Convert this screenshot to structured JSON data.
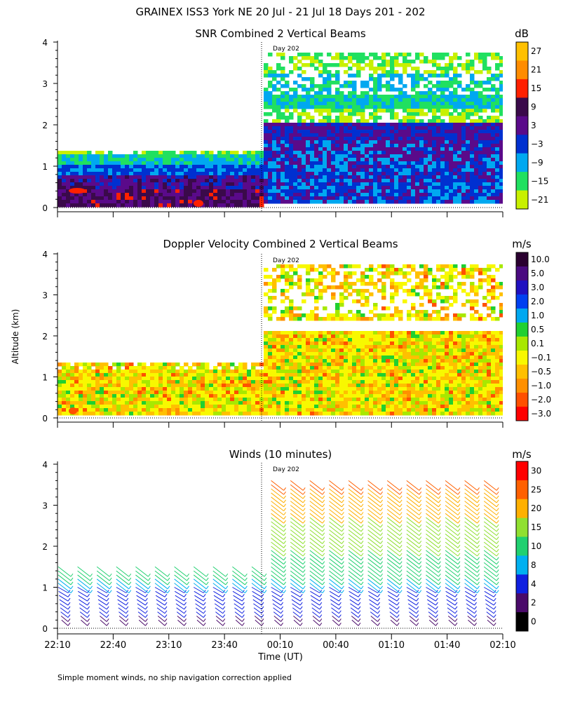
{
  "title": "GRAINEX ISS3 York NE  20 Jul - 21 Jul 18 Days 201 - 202",
  "ylabel": "Altitude (km)",
  "xlabel": "Time (UT)",
  "footnote": "Simple moment winds, no ship navigation correction applied",
  "day_marker": "Day 202",
  "x_ticks": [
    "22:10",
    "22:40",
    "23:10",
    "23:40",
    "00:10",
    "00:40",
    "01:10",
    "01:40",
    "02:10"
  ],
  "y_ticks": [
    "0",
    "1",
    "2",
    "3",
    "4"
  ],
  "panels": [
    {
      "title": "SNR Combined 2 Vertical Beams",
      "unit": "dB",
      "colorbar_labels": [
        "27",
        "21",
        "15",
        "9",
        "3",
        "−3",
        "−9",
        "−15",
        "−21"
      ],
      "colorbar_colors": [
        "#ffc000",
        "#ff8c00",
        "#ff2000",
        "#3a0a4a",
        "#5a0a8a",
        "#0030d0",
        "#00a8f0",
        "#20e060",
        "#c8f000"
      ]
    },
    {
      "title": "Doppler Velocity Combined 2 Vertical Beams",
      "unit": "m/s",
      "colorbar_labels": [
        "10.0",
        "5.0",
        "3.0",
        "2.0",
        "1.0",
        "0.5",
        "0.1",
        "−0.1",
        "−0.5",
        "−1.0",
        "−2.0",
        "−3.0"
      ],
      "colorbar_colors": [
        "#2a0030",
        "#4a0a80",
        "#2010c0",
        "#0040f0",
        "#00a8f0",
        "#20d030",
        "#a8e800",
        "#f8f800",
        "#ffc000",
        "#ff9000",
        "#ff5000",
        "#ff0000"
      ]
    },
    {
      "title": "Winds (10 minutes)",
      "unit": "m/s",
      "colorbar_labels": [
        "30",
        "25",
        "20",
        "15",
        "10",
        "8",
        "4",
        "2",
        "0"
      ],
      "colorbar_colors": [
        "#ff0000",
        "#ff6000",
        "#ffb000",
        "#90e030",
        "#20d070",
        "#00b0f0",
        "#1020e0",
        "#4a0a6a",
        "#000000"
      ]
    }
  ],
  "chart_data": {
    "type": "heatmap",
    "x_range": [
      "22:10",
      "02:10"
    ],
    "y_range_km": [
      0,
      4
    ],
    "day_boundary": "00:00",
    "panels": [
      {
        "name": "SNR",
        "unit": "dB",
        "scale": [
          -21,
          27
        ]
      },
      {
        "name": "Doppler Velocity",
        "unit": "m/s",
        "scale": [
          -3.0,
          10.0
        ]
      },
      {
        "name": "Winds",
        "unit": "m/s",
        "scale": [
          0,
          30
        ]
      }
    ]
  }
}
